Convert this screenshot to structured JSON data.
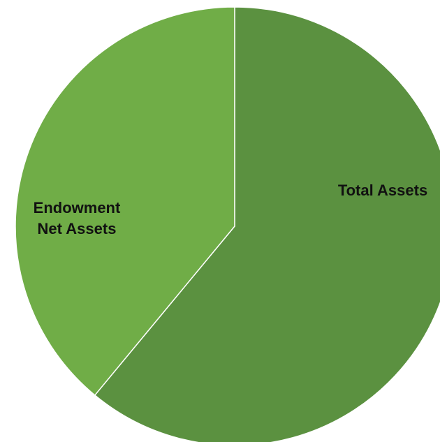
{
  "chart_data": {
    "type": "pie",
    "title": "",
    "start_angle_deg": 0,
    "direction": "clockwise",
    "slices": [
      {
        "name": "Total Assets",
        "label_lines": [
          "Total Assets"
        ],
        "value": 61,
        "color": "#5b9140"
      },
      {
        "name": "Endowment Net Assets",
        "label_lines": [
          "Endowment",
          "Net Assets"
        ],
        "value": 39,
        "color": "#70ad47"
      }
    ],
    "legend": "none"
  }
}
